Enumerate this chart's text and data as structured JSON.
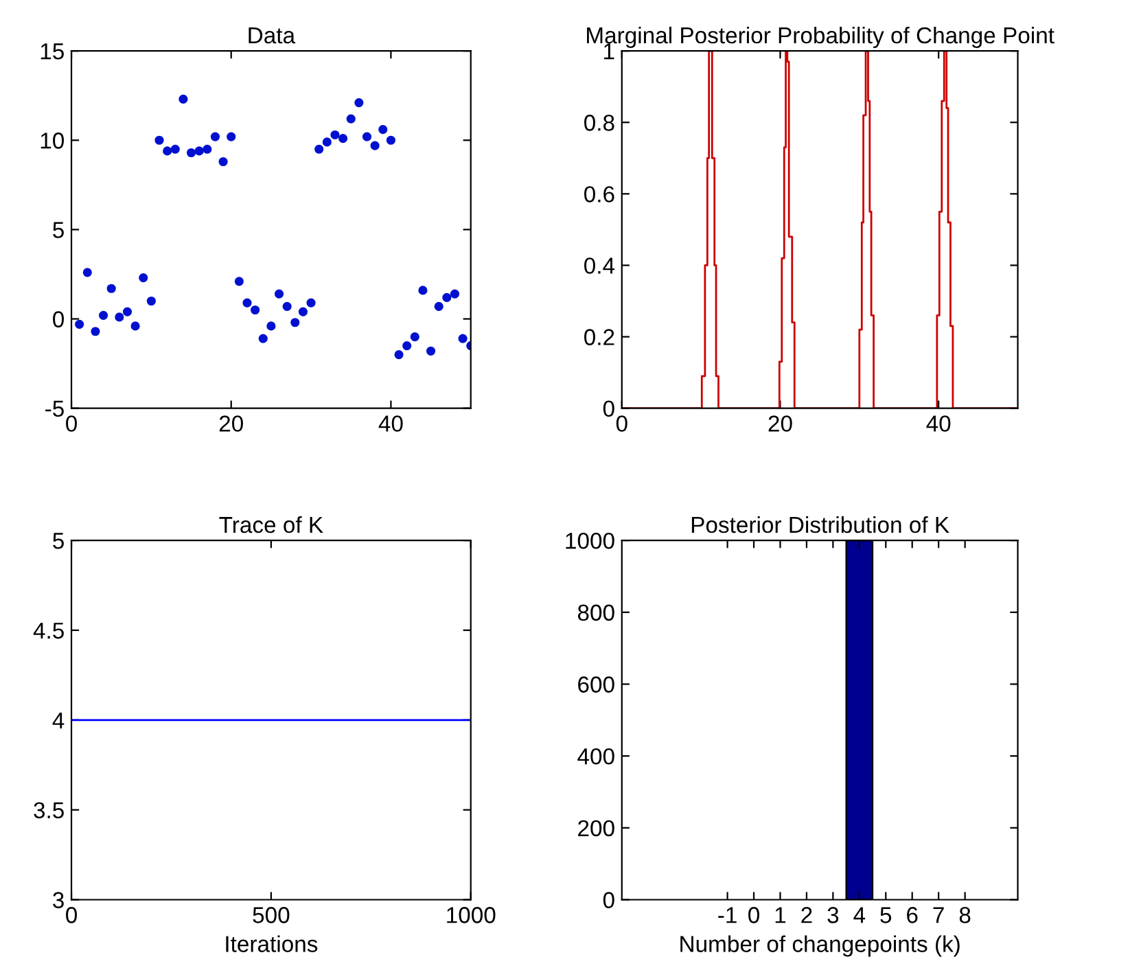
{
  "chart_data": [
    {
      "type": "scatter",
      "title": "Data",
      "marker": "circle",
      "grid": false,
      "legend": false,
      "x": [
        1,
        2,
        3,
        4,
        5,
        6,
        7,
        8,
        9,
        10,
        11,
        12,
        13,
        14,
        15,
        16,
        17,
        18,
        19,
        20,
        21,
        22,
        23,
        24,
        25,
        26,
        27,
        28,
        29,
        30,
        31,
        32,
        33,
        34,
        35,
        36,
        37,
        38,
        39,
        40,
        41,
        42,
        43,
        44,
        45,
        46,
        47,
        48,
        49,
        50
      ],
      "series": [
        {
          "color": "#0010d0",
          "values": [
            -0.3,
            2.6,
            -0.7,
            0.2,
            1.7,
            0.1,
            0.4,
            -0.4,
            2.3,
            1.0,
            10.0,
            9.4,
            9.5,
            12.3,
            9.3,
            9.4,
            9.5,
            10.2,
            8.8,
            10.2,
            2.1,
            0.9,
            0.5,
            -1.1,
            -0.4,
            1.4,
            0.7,
            -0.2,
            0.4,
            0.9,
            9.5,
            9.9,
            10.3,
            10.1,
            11.2,
            12.1,
            10.2,
            9.7,
            10.6,
            10.0,
            -2.0,
            -1.5,
            -1.0,
            1.6,
            -1.8,
            0.7,
            1.2,
            1.4,
            -1.1,
            -1.5
          ]
        }
      ],
      "xlim": [
        0,
        50
      ],
      "xticks": [
        0,
        20,
        40
      ],
      "ylim": [
        -5,
        15
      ],
      "yticks": [
        -5,
        0,
        5,
        10,
        15
      ]
    },
    {
      "type": "line",
      "title": "Marginal Posterior Probability of Change Point",
      "marker": "none",
      "line_style": "solid",
      "grid": false,
      "legend": false,
      "x": [
        0,
        10.1,
        10.1,
        10.5,
        10.5,
        10.8,
        10.8,
        11.0,
        11.0,
        11.4,
        11.4,
        11.7,
        11.7,
        11.9,
        11.9,
        12.2,
        12.2,
        19.9,
        19.9,
        20.2,
        20.2,
        20.5,
        20.5,
        20.7,
        20.7,
        20.9,
        20.9,
        21.1,
        21.1,
        21.5,
        21.5,
        21.8,
        21.8,
        30.0,
        30.0,
        30.3,
        30.3,
        30.5,
        30.5,
        30.8,
        30.8,
        31.1,
        31.1,
        31.3,
        31.3,
        31.5,
        31.5,
        31.8,
        31.8,
        39.8,
        39.8,
        40.1,
        40.1,
        40.4,
        40.4,
        40.7,
        40.7,
        41.0,
        41.0,
        41.2,
        41.2,
        41.5,
        41.5,
        41.8,
        41.8,
        50
      ],
      "series": [
        {
          "color": "#cc0000",
          "values": [
            0,
            0,
            0.09,
            0.09,
            0.4,
            0.4,
            0.7,
            0.7,
            1,
            1,
            0.7,
            0.7,
            0.4,
            0.4,
            0.09,
            0.09,
            0,
            0,
            0.13,
            0.13,
            0.42,
            0.42,
            0.73,
            0.73,
            1,
            1,
            0.97,
            0.97,
            0.48,
            0.48,
            0.24,
            0.24,
            0,
            0,
            0.22,
            0.22,
            0.52,
            0.52,
            0.82,
            0.82,
            1,
            1,
            0.86,
            0.86,
            0.55,
            0.55,
            0.26,
            0.26,
            0,
            0,
            0.26,
            0.26,
            0.55,
            0.55,
            0.86,
            0.86,
            1,
            1,
            0.84,
            0.84,
            0.52,
            0.52,
            0.23,
            0.23,
            0,
            0
          ]
        }
      ],
      "xlim": [
        0,
        50
      ],
      "xticks": [
        0,
        20,
        40
      ],
      "ylim": [
        0,
        1
      ],
      "yticks": [
        0,
        0.2,
        0.4,
        0.6,
        0.8,
        1
      ]
    },
    {
      "type": "line",
      "title": "Trace of K",
      "xlabel": "Iterations",
      "marker": "none",
      "line_style": "solid",
      "grid": false,
      "legend": false,
      "x": [
        0,
        1000
      ],
      "series": [
        {
          "color": "#0000ff",
          "values": [
            4,
            4
          ]
        }
      ],
      "xlim": [
        0,
        1000
      ],
      "xticks": [
        0,
        500,
        1000
      ],
      "ylim": [
        3,
        5
      ],
      "yticks": [
        3,
        3.5,
        4,
        4.5,
        5
      ]
    },
    {
      "type": "histogram",
      "title": "Posterior Distribution of K",
      "xlabel": "Number of changepoints (k)",
      "grid": false,
      "legend": false,
      "bins": [
        3.5,
        4.5
      ],
      "values": [
        1000
      ],
      "color": "#00008f",
      "xlim": [
        -5,
        10
      ],
      "xticks": [
        {
          "value": -1,
          "label": "-1"
        },
        0,
        1,
        2,
        3,
        4,
        5,
        6,
        7,
        8
      ],
      "ylim": [
        0,
        1000
      ],
      "yticks": [
        0,
        200,
        400,
        600,
        800,
        1000
      ]
    }
  ]
}
